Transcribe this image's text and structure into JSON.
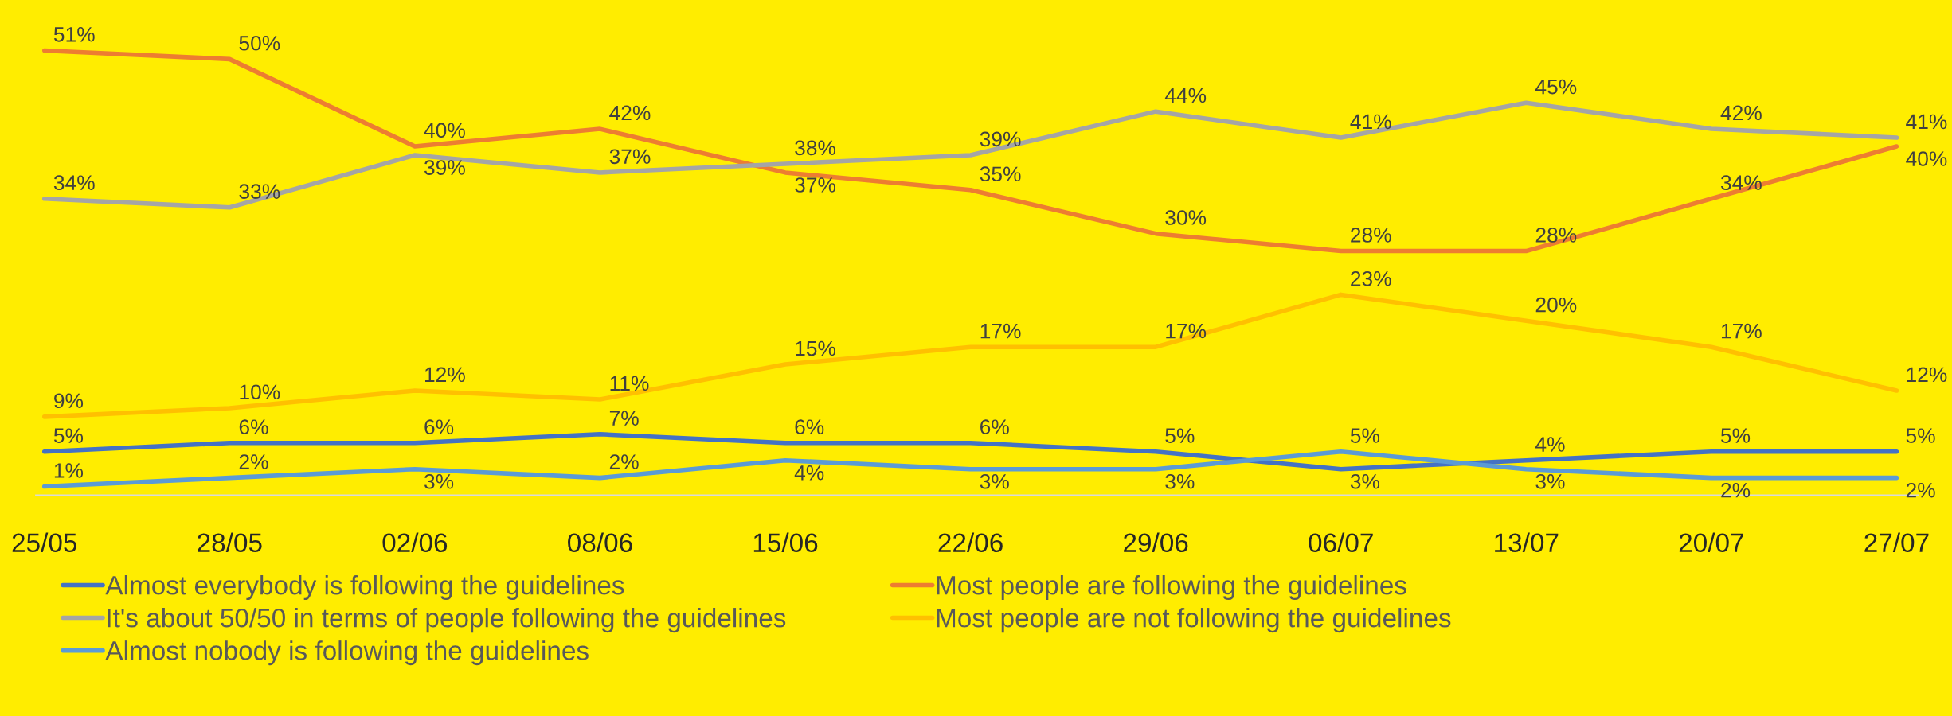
{
  "chart_data": {
    "type": "line",
    "categories": [
      "25/05",
      "28/05",
      "02/06",
      "08/06",
      "15/06",
      "22/06",
      "29/06",
      "06/07",
      "13/07",
      "20/07",
      "27/07"
    ],
    "series": [
      {
        "name": "Almost everybody is following the guidelines",
        "color": "#4472c4",
        "values": [
          5,
          6,
          6,
          7,
          6,
          6,
          5,
          3,
          4,
          5,
          5
        ],
        "value_labels": [
          "5%",
          "6%",
          "6%",
          "7%",
          "6%",
          "6%",
          "5%",
          "3%",
          "4%",
          "5%",
          "5%"
        ]
      },
      {
        "name": "Most people are following the guidelines",
        "color": "#ed7d31",
        "values": [
          51,
          50,
          40,
          42,
          37,
          35,
          30,
          28,
          28,
          34,
          40
        ],
        "value_labels": [
          "51%",
          "50%",
          "40%",
          "42%",
          "37%",
          "35%",
          "30%",
          "28%",
          "28%",
          "34%",
          "40%"
        ]
      },
      {
        "name": "It's about 50/50 in terms of people following the guidelines",
        "color": "#a5a5a5",
        "values": [
          34,
          33,
          39,
          37,
          38,
          39,
          44,
          41,
          45,
          42,
          41
        ],
        "value_labels": [
          "34%",
          "33%",
          "39%",
          "37%",
          "38%",
          "39%",
          "44%",
          "41%",
          "45%",
          "42%",
          "41%"
        ]
      },
      {
        "name": "Most people are not following the guidelines",
        "color": "#ffc000",
        "values": [
          9,
          10,
          12,
          11,
          15,
          17,
          17,
          23,
          20,
          17,
          12
        ],
        "value_labels": [
          "9%",
          "10%",
          "12%",
          "11%",
          "15%",
          "17%",
          "17%",
          "23%",
          "20%",
          "17%",
          "12%"
        ]
      },
      {
        "name": "Almost nobody is following the guidelines",
        "color": "#5b9bd5",
        "values": [
          1,
          2,
          3,
          2,
          4,
          3,
          3,
          5,
          3,
          2,
          2
        ],
        "value_labels": [
          "1%",
          "2%",
          "3%",
          "2%",
          "4%",
          "3%",
          "3%",
          "5%",
          "3%",
          "2%",
          "2%"
        ]
      }
    ],
    "tick_labels": "x",
    "legend": "bottom"
  }
}
